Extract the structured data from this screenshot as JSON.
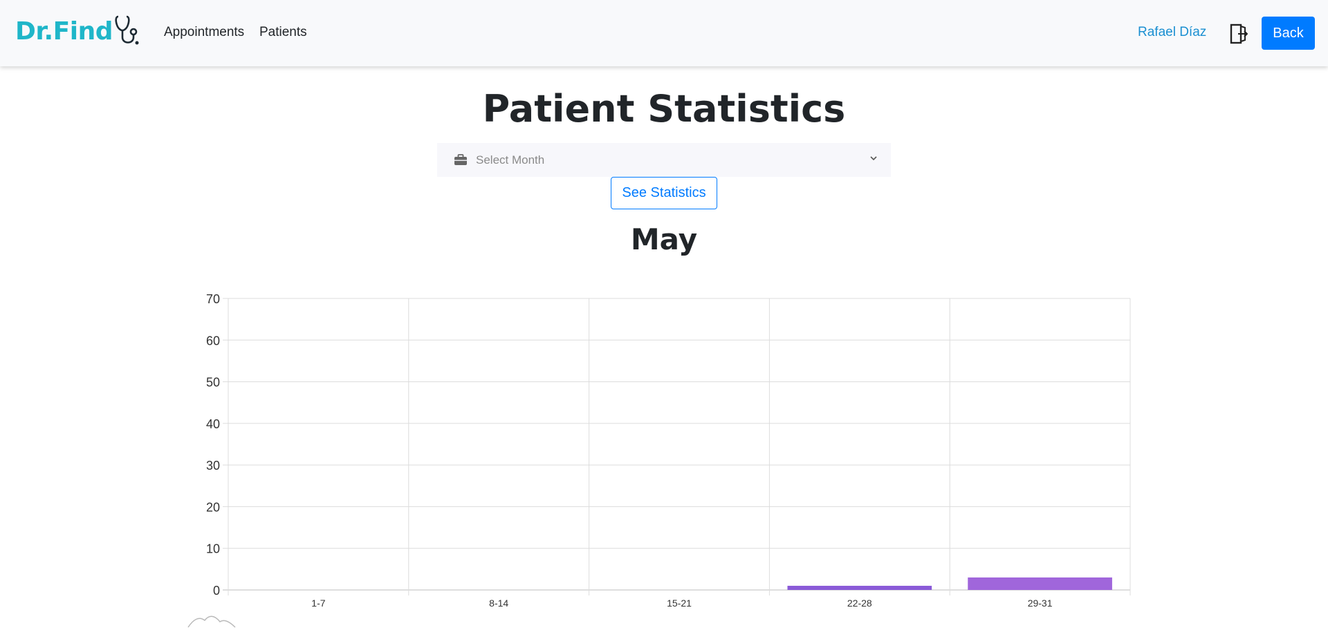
{
  "nav": {
    "brand": "Dr.Find",
    "links": [
      "Appointments",
      "Patients"
    ],
    "user": "Rafael Díaz",
    "back_label": "Back"
  },
  "page": {
    "title": "Patient Statistics",
    "select_placeholder": "Select Month",
    "see_button": "See Statistics"
  },
  "chart_data": {
    "type": "bar",
    "title": "May",
    "categories": [
      "1-7",
      "8-14",
      "15-21",
      "22-28",
      "29-31"
    ],
    "values": [
      0,
      0,
      0,
      1,
      3
    ],
    "ylim": [
      0,
      70
    ],
    "yticks": [
      0,
      10,
      20,
      30,
      40,
      50,
      60,
      70
    ],
    "grid": true,
    "bar_colors": [
      "#6f5bd6",
      "#6f5bd6",
      "#7a5ad6",
      "#8a5ad8",
      "#a066db"
    ]
  }
}
